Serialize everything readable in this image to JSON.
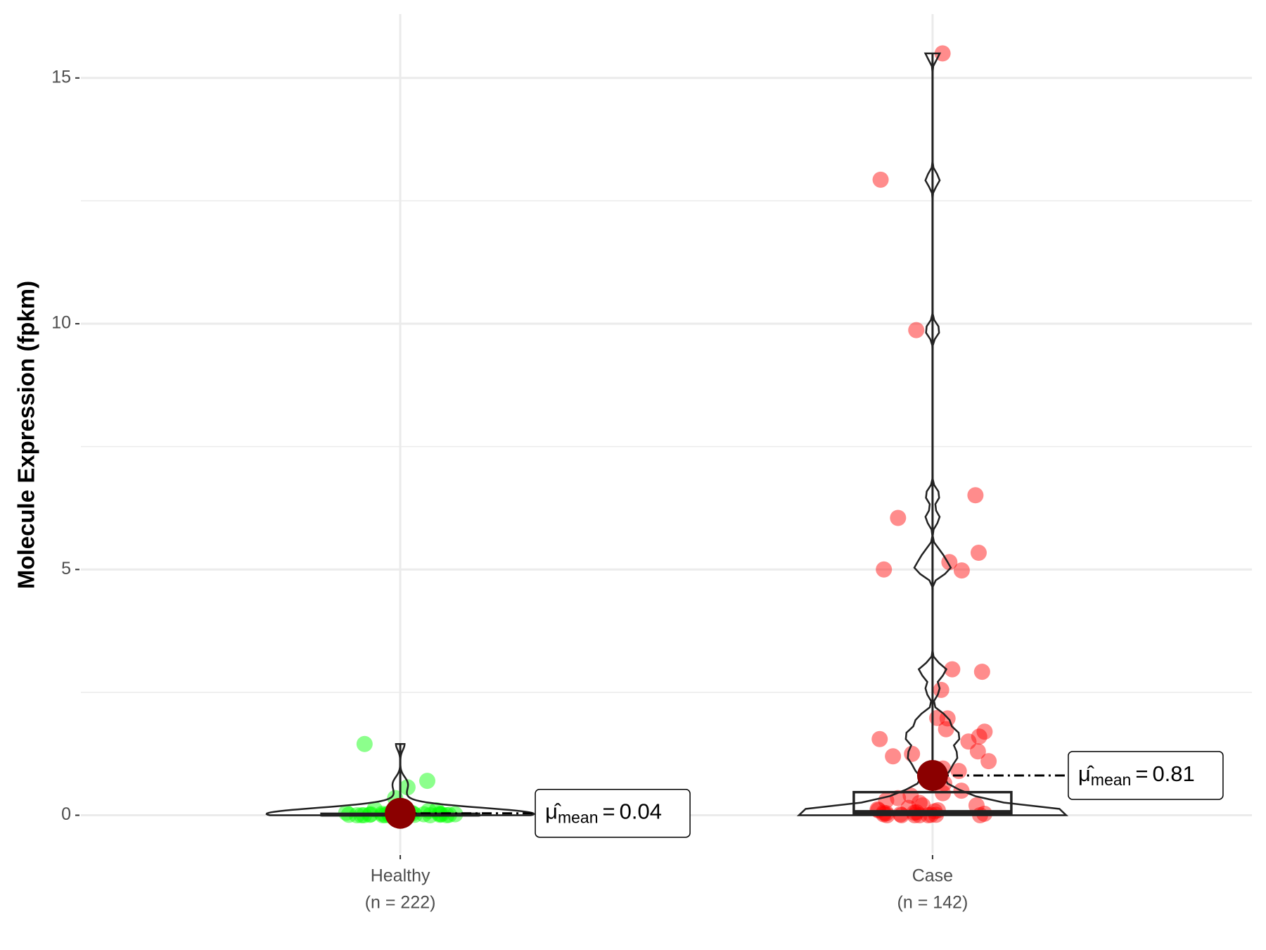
{
  "chart_data": {
    "type": "violin-box-scatter",
    "y_label": "Molecule Expression (fpkm)",
    "categories": [
      "Healthy",
      "Case"
    ],
    "n": [
      222,
      142
    ],
    "n_labels": [
      "(n = 222)",
      "(n = 142)"
    ],
    "ylim": [
      -0.78,
      16.3
    ],
    "yticks": [
      0,
      5,
      10,
      15
    ],
    "minor_yticks": [
      2.5,
      7.5,
      12.5
    ],
    "grid": true,
    "mean_symbol": "μ̂",
    "mean_subscript": "mean",
    "mean_operator": "=",
    "mean_color": "#8b0000",
    "series": [
      {
        "name": "Healthy",
        "color": "#00ff00",
        "mean": 0.04,
        "box": {
          "q1": 0.0,
          "median": 0.01,
          "q3": 0.03,
          "whisker_high": 1.45
        },
        "values": [
          1.45,
          0.7,
          0.57,
          0.35,
          0.12,
          0.1,
          0.09,
          0.08,
          0.07,
          0.06,
          0.05,
          0.05,
          0.04,
          0.04,
          0.03,
          0.03,
          0.03,
          0.02,
          0.02,
          0.02,
          0.02,
          0.01,
          0.01,
          0.01,
          0.01,
          0.01,
          0,
          0,
          0,
          0,
          0,
          0,
          0,
          0,
          0,
          0
        ]
      },
      {
        "name": "Case",
        "color": "#ff0000",
        "mean": 0.81,
        "box": {
          "q1": 0.02,
          "median": 0.07,
          "q3": 0.47,
          "whisker_high": 15.5
        },
        "values": [
          15.5,
          12.93,
          9.87,
          6.51,
          6.05,
          5.34,
          5.15,
          4.98,
          5.0,
          2.97,
          2.92,
          2.55,
          1.98,
          1.97,
          1.75,
          1.7,
          1.6,
          1.55,
          1.5,
          1.3,
          1.25,
          1.2,
          1.1,
          0.95,
          0.9,
          0.65,
          0.5,
          0.45,
          0.4,
          0.35,
          0.3,
          0.25,
          0.2,
          0.2,
          0.15,
          0.12,
          0.1,
          0.1,
          0.08,
          0.06,
          0.05,
          0.05,
          0.04,
          0.03,
          0.02,
          0.02,
          0.01,
          0.01,
          0,
          0,
          0,
          0,
          0,
          0
        ]
      }
    ]
  }
}
